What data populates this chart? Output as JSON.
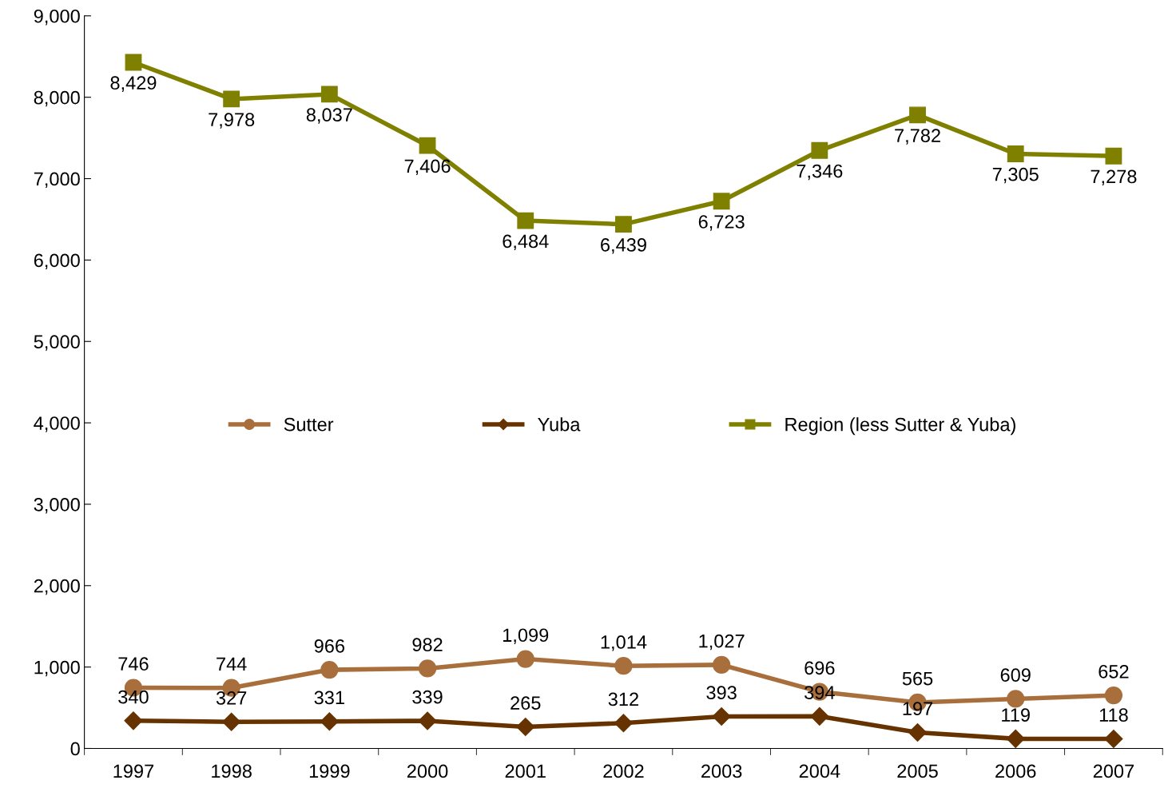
{
  "chart_data": {
    "type": "line",
    "categories": [
      "1997",
      "1998",
      "1999",
      "2000",
      "2001",
      "2002",
      "2003",
      "2004",
      "2005",
      "2006",
      "2007"
    ],
    "series": [
      {
        "name": "Sutter",
        "color": "#a86f3c",
        "marker": "circle",
        "values": [
          746,
          744,
          966,
          982,
          1099,
          1014,
          1027,
          696,
          565,
          609,
          652
        ],
        "value_labels": [
          "746",
          "744",
          "966",
          "982",
          "1,099",
          "1,014",
          "1,027",
          "696",
          "565",
          "609",
          "652"
        ]
      },
      {
        "name": "Yuba",
        "color": "#663300",
        "marker": "diamond",
        "values": [
          340,
          327,
          331,
          339,
          265,
          312,
          393,
          394,
          197,
          119,
          118
        ],
        "value_labels": [
          "340",
          "327",
          "331",
          "339",
          "265",
          "312",
          "393",
          "394",
          "197",
          "119",
          "118"
        ]
      },
      {
        "name": "Region (less Sutter & Yuba)",
        "color": "#808000",
        "marker": "square",
        "values": [
          8429,
          7978,
          8037,
          7406,
          6484,
          6439,
          6723,
          7346,
          7782,
          7305,
          7278
        ],
        "value_labels": [
          "8,429",
          "7,978",
          "8,037",
          "7,406",
          "6,484",
          "6,439",
          "6,723",
          "7,346",
          "7,782",
          "7,305",
          "7,278"
        ]
      }
    ],
    "ylim": [
      0,
      9000
    ],
    "yticks": [
      {
        "value": 0,
        "label": "0"
      },
      {
        "value": 1000,
        "label": "1,000"
      },
      {
        "value": 2000,
        "label": "2,000"
      },
      {
        "value": 3000,
        "label": "3,000"
      },
      {
        "value": 4000,
        "label": "4,000"
      },
      {
        "value": 5000,
        "label": "5,000"
      },
      {
        "value": 6000,
        "label": "6,000"
      },
      {
        "value": 7000,
        "label": "7,000"
      },
      {
        "value": 8000,
        "label": "8,000"
      },
      {
        "value": 9000,
        "label": "9,000"
      }
    ],
    "grid": false,
    "legend": "center",
    "line_style": "solid"
  }
}
